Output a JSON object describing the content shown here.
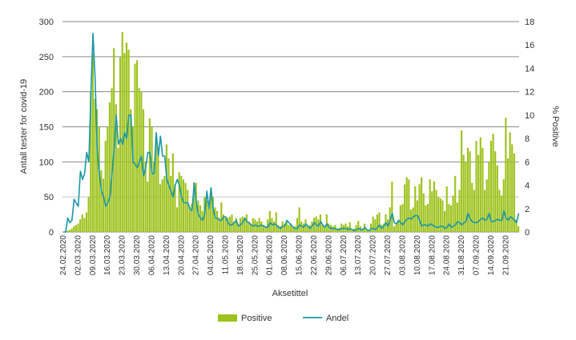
{
  "chart_data": {
    "type": "bar+line",
    "start_date": "24.02.2020",
    "xlabel": "Aksetittel",
    "ylabel_left": "Antall tester for covid-19",
    "ylabel_right": "% Positive",
    "ylim_left": [
      0,
      300
    ],
    "ylim_right": [
      0,
      18
    ],
    "yticks_left": [
      "0",
      "50",
      "100",
      "150",
      "200",
      "250",
      "300"
    ],
    "yticks_right": [
      "0",
      "2",
      "4",
      "6",
      "8",
      "10",
      "12",
      "14",
      "16",
      "18"
    ],
    "xticks": [
      "24.02.2020",
      "02.03.2020",
      "09.03.2020",
      "16.03.2020",
      "23.03.2020",
      "30.03.2020",
      "06.04.2020",
      "13.04.2020",
      "20.04.2020",
      "27.04.2020",
      "04.05.2020",
      "11.05.2020",
      "18.05.2020",
      "25.05.2020",
      "01.06.2020",
      "08.06.2020",
      "15.06.2020",
      "22.06.2020",
      "29.06.2020",
      "06.07.2020",
      "13.07.2020",
      "20.07.2020",
      "27.07.2020",
      "03.08.2020",
      "10.08.2020",
      "17.08.2020",
      "24.08.2020",
      "31.08.2020",
      "07.09.2020",
      "14.09.2020",
      "21.09.2020"
    ],
    "legend": {
      "placement": "bottom",
      "positive_label": "Positive",
      "andel_label": "Andel"
    },
    "colors": {
      "positive": "#9dc21b",
      "andel": "#1a97a8",
      "grid": "#8a8a8a"
    },
    "series": [
      {
        "name": "Positive",
        "axis": "left",
        "kind": "bar",
        "values": [
          0,
          0,
          2,
          3,
          5,
          8,
          10,
          12,
          18,
          25,
          20,
          28,
          50,
          200,
          255,
          190,
          175,
          150,
          88,
          76,
          130,
          150,
          185,
          205,
          262,
          182,
          120,
          250,
          285,
          255,
          270,
          260,
          175,
          150,
          240,
          245,
          205,
          200,
          175,
          100,
          72,
          162,
          150,
          100,
          135,
          120,
          68,
          75,
          80,
          125,
          105,
          80,
          112,
          68,
          35,
          85,
          80,
          75,
          70,
          60,
          35,
          40,
          70,
          70,
          45,
          38,
          30,
          50,
          45,
          40,
          55,
          50,
          35,
          30,
          20,
          42,
          25,
          20,
          20,
          22,
          25,
          15,
          20,
          12,
          20,
          22,
          20,
          25,
          15,
          12,
          20,
          18,
          15,
          20,
          15,
          10,
          8,
          18,
          30,
          20,
          15,
          28,
          10,
          8,
          15,
          12,
          15,
          10,
          12,
          6,
          8,
          20,
          35,
          15,
          12,
          18,
          8,
          10,
          15,
          20,
          22,
          18,
          25,
          10,
          8,
          25,
          12,
          10,
          8,
          10,
          5,
          6,
          12,
          10,
          12,
          8,
          14,
          4,
          5,
          10,
          16,
          8,
          5,
          12,
          4,
          3,
          12,
          22,
          18,
          25,
          28,
          10,
          12,
          25,
          18,
          35,
          72,
          8,
          12,
          15,
          38,
          40,
          68,
          78,
          75,
          32,
          35,
          65,
          45,
          68,
          78,
          55,
          38,
          40,
          75,
          58,
          72,
          60,
          50,
          48,
          45,
          30,
          65,
          40,
          38,
          52,
          80,
          42,
          60,
          145,
          110,
          100,
          120,
          115,
          70,
          60,
          130,
          110,
          135,
          120,
          60,
          75,
          100,
          130,
          140,
          115,
          95,
          60,
          52,
          75,
          163,
          105,
          142,
          125,
          112,
          18,
          8
        ]
      },
      {
        "name": "Andel",
        "axis": "right",
        "kind": "line",
        "values": [
          0,
          0,
          1.2,
          0.8,
          1,
          2.8,
          2.5,
          2.2,
          5.2,
          4.5,
          5,
          6.8,
          6,
          12,
          17,
          13,
          7,
          5,
          3.5,
          3,
          2.2,
          2.5,
          3,
          5,
          7,
          10,
          7.5,
          8,
          7.5,
          8.5,
          8,
          10,
          10,
          6,
          5.8,
          5.5,
          6,
          6.5,
          4.8,
          5.5,
          6.8,
          6.8,
          5,
          5,
          8.5,
          6.5,
          8.2,
          6.5,
          6.5,
          4.5,
          4,
          3.5,
          3,
          4,
          4.5,
          4,
          3,
          2.5,
          2.5,
          2.5,
          2,
          1.8,
          4.2,
          2.5,
          1.5,
          1.2,
          1,
          1.5,
          3.5,
          2,
          3.8,
          2,
          1.2,
          1.2,
          1,
          1,
          1.3,
          1.3,
          0.8,
          0.6,
          0.6,
          0.8,
          1,
          0.5,
          0.6,
          0.8,
          1.2,
          0.9,
          0.8,
          0.6,
          0.5,
          0.6,
          0.5,
          0.5,
          0.6,
          0.5,
          0.4,
          0.4,
          0.8,
          0.6,
          0.7,
          0.6,
          0.4,
          0.3,
          0.5,
          0.5,
          1,
          0.8,
          0.6,
          0.4,
          0.3,
          0.3,
          0.6,
          0.5,
          0.4,
          0.7,
          0.5,
          0.3,
          0.5,
          0.8,
          0.6,
          0.5,
          0.9,
          0.6,
          0.4,
          0.7,
          0.4,
          0.3,
          0.3,
          0.3,
          0.2,
          0.2,
          0.3,
          0.3,
          0.3,
          0.2,
          0.3,
          0.2,
          0.1,
          0.2,
          0.3,
          0.2,
          0.2,
          0.4,
          0.2,
          0.1,
          0.3,
          0.3,
          0.2,
          0.4,
          0.6,
          0.3,
          0.5,
          0.8,
          0.5,
          1,
          1.6,
          0.8,
          0.7,
          1,
          0.8,
          0.6,
          0.9,
          1.1,
          1.2,
          1.1,
          1.3,
          1.4,
          1.4,
          1,
          0.5,
          0.6,
          0.6,
          0.5,
          0.7,
          0.6,
          0.5,
          0.4,
          0.4,
          0.5,
          0.5,
          0.3,
          0.4,
          0.7,
          0.4,
          0.5,
          0.6,
          0.9,
          0.8,
          0.6,
          0.8,
          0.9,
          1.6,
          1.1,
          0.9,
          0.8,
          0.8,
          0.9,
          1.1,
          1.2,
          1.0,
          1.1,
          1.6,
          0.9,
          0.9,
          1.0,
          1.1,
          1.0,
          1.0,
          1.8,
          1.2,
          1.0,
          1.3,
          1.2,
          1.0,
          0.8,
          1.6
        ]
      }
    ]
  }
}
